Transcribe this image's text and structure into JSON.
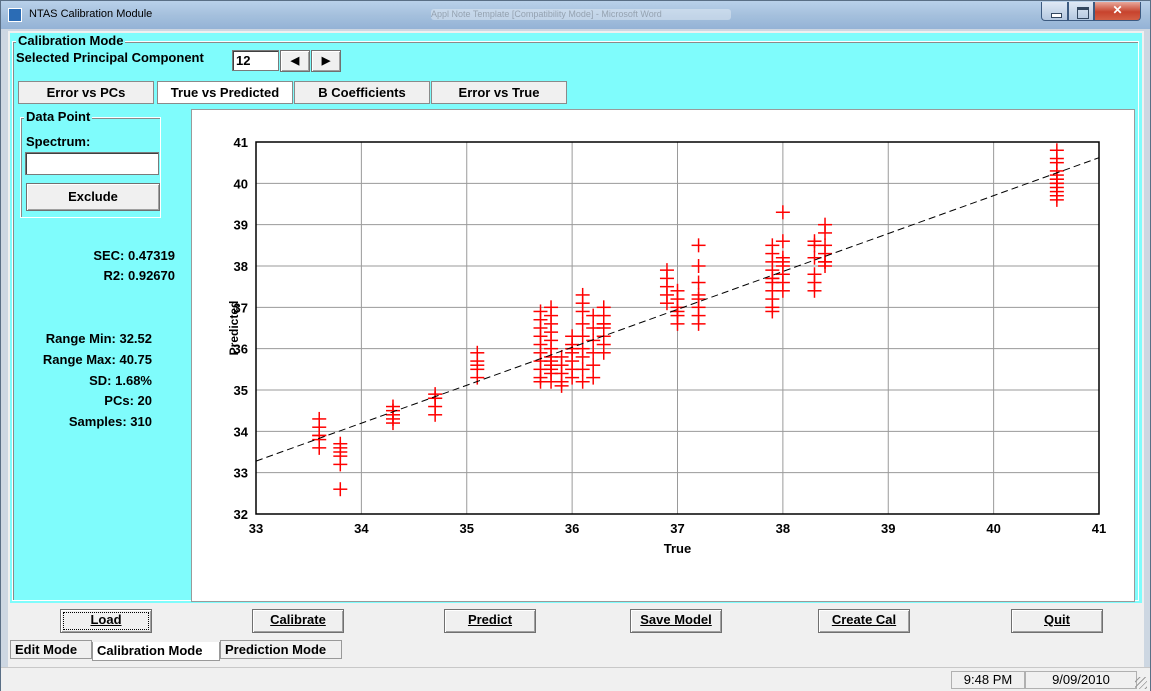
{
  "window": {
    "title": "NTAS Calibration Module",
    "background_title": "Appl Note Template [Compatibility Mode] - Microsoft Word"
  },
  "calibration": {
    "group_label": "Calibration Mode",
    "pc_label": "Selected Principal Component",
    "pc_value": "12"
  },
  "view_tabs": [
    {
      "label": "Error vs PCs",
      "active": false
    },
    {
      "label": "True vs Predicted",
      "active": true
    },
    {
      "label": "B Coefficients",
      "active": false
    },
    {
      "label": "Error vs True",
      "active": false
    }
  ],
  "data_point": {
    "group_label": "Data Point",
    "spectrum_label": "Spectrum:",
    "spectrum_value": "",
    "exclude_label": "Exclude"
  },
  "stats": {
    "sec": "SEC: 0.47319",
    "r2": "R2: 0.92670",
    "range_min": "Range Min: 32.52",
    "range_max": "Range Max: 40.75",
    "sd": "SD: 1.68%",
    "pcs": "PCs: 20",
    "samples": "Samples: 310"
  },
  "bottom_buttons": {
    "load": "Load",
    "calibrate": "Calibrate",
    "predict": "Predict",
    "save_model": "Save Model",
    "create_cal": "Create Cal",
    "quit": "Quit"
  },
  "mode_tabs": {
    "edit": "Edit Mode",
    "calibration": "Calibration Mode",
    "prediction": "Prediction Mode"
  },
  "status": {
    "time": "9:48 PM",
    "date": "9/09/2010"
  },
  "chart_data": {
    "type": "scatter",
    "title": "",
    "xlabel": "True",
    "ylabel": "Predicted",
    "xlim": [
      33,
      41
    ],
    "ylim": [
      32,
      41
    ],
    "xticks": [
      33,
      34,
      35,
      36,
      37,
      38,
      39,
      40,
      41
    ],
    "yticks": [
      32,
      33,
      34,
      35,
      36,
      37,
      38,
      39,
      40,
      41
    ],
    "grid": true,
    "marker": "plus",
    "marker_color": "#ff0000",
    "fit_line": {
      "x": [
        33,
        41
      ],
      "y": [
        33.28,
        40.62
      ],
      "style": "dashed",
      "color": "#000000"
    },
    "points": [
      [
        33.6,
        34.3
      ],
      [
        33.6,
        34.1
      ],
      [
        33.6,
        33.9
      ],
      [
        33.6,
        33.8
      ],
      [
        33.6,
        33.6
      ],
      [
        33.6,
        33.9
      ],
      [
        33.8,
        33.7
      ],
      [
        33.8,
        33.5
      ],
      [
        33.8,
        33.4
      ],
      [
        33.8,
        33.2
      ],
      [
        33.8,
        32.6
      ],
      [
        33.8,
        33.6
      ],
      [
        34.3,
        34.6
      ],
      [
        34.3,
        34.4
      ],
      [
        34.3,
        34.3
      ],
      [
        34.3,
        34.5
      ],
      [
        34.3,
        34.2
      ],
      [
        34.7,
        34.9
      ],
      [
        34.7,
        34.8
      ],
      [
        34.7,
        34.6
      ],
      [
        34.7,
        34.4
      ],
      [
        34.7,
        34.8
      ],
      [
        35.1,
        35.9
      ],
      [
        35.1,
        35.7
      ],
      [
        35.1,
        35.5
      ],
      [
        35.1,
        35.3
      ],
      [
        35.1,
        35.6
      ],
      [
        35.7,
        36.9
      ],
      [
        35.7,
        36.7
      ],
      [
        35.7,
        36.5
      ],
      [
        35.7,
        36.3
      ],
      [
        35.7,
        36.1
      ],
      [
        35.7,
        35.9
      ],
      [
        35.7,
        35.7
      ],
      [
        35.7,
        35.5
      ],
      [
        35.7,
        35.3
      ],
      [
        35.7,
        35.2
      ],
      [
        35.8,
        37.0
      ],
      [
        35.8,
        36.8
      ],
      [
        35.8,
        36.6
      ],
      [
        35.8,
        36.4
      ],
      [
        35.8,
        36.2
      ],
      [
        35.8,
        36.0
      ],
      [
        35.8,
        35.8
      ],
      [
        35.8,
        35.6
      ],
      [
        35.8,
        35.4
      ],
      [
        35.8,
        35.2
      ],
      [
        35.8,
        35.7
      ],
      [
        35.8,
        35.5
      ],
      [
        35.9,
        35.8
      ],
      [
        35.9,
        35.6
      ],
      [
        35.9,
        35.4
      ],
      [
        35.9,
        35.2
      ],
      [
        35.9,
        35.1
      ],
      [
        36.0,
        36.3
      ],
      [
        36.0,
        36.1
      ],
      [
        36.0,
        35.9
      ],
      [
        36.0,
        35.7
      ],
      [
        36.0,
        35.5
      ],
      [
        36.0,
        35.3
      ],
      [
        36.0,
        36.0
      ],
      [
        36.1,
        37.3
      ],
      [
        36.1,
        37.1
      ],
      [
        36.1,
        36.9
      ],
      [
        36.1,
        36.6
      ],
      [
        36.1,
        36.3
      ],
      [
        36.1,
        36.0
      ],
      [
        36.1,
        35.8
      ],
      [
        36.1,
        35.5
      ],
      [
        36.1,
        35.2
      ],
      [
        36.2,
        36.8
      ],
      [
        36.2,
        36.5
      ],
      [
        36.2,
        36.2
      ],
      [
        36.2,
        35.9
      ],
      [
        36.2,
        35.6
      ],
      [
        36.2,
        35.3
      ],
      [
        36.3,
        37.0
      ],
      [
        36.3,
        36.8
      ],
      [
        36.3,
        36.6
      ],
      [
        36.3,
        36.5
      ],
      [
        36.3,
        36.3
      ],
      [
        36.3,
        36.1
      ],
      [
        36.3,
        35.9
      ],
      [
        36.3,
        36.6
      ],
      [
        36.9,
        37.9
      ],
      [
        36.9,
        37.7
      ],
      [
        36.9,
        37.5
      ],
      [
        36.9,
        37.3
      ],
      [
        36.9,
        37.1
      ],
      [
        37.0,
        37.4
      ],
      [
        37.0,
        37.2
      ],
      [
        37.0,
        37.0
      ],
      [
        37.0,
        36.8
      ],
      [
        37.0,
        36.6
      ],
      [
        37.0,
        36.9
      ],
      [
        37.2,
        38.5
      ],
      [
        37.2,
        38.0
      ],
      [
        37.2,
        37.6
      ],
      [
        37.2,
        37.3
      ],
      [
        37.2,
        37.0
      ],
      [
        37.2,
        36.8
      ],
      [
        37.2,
        36.6
      ],
      [
        37.2,
        37.2
      ],
      [
        37.9,
        38.5
      ],
      [
        37.9,
        38.3
      ],
      [
        37.9,
        38.1
      ],
      [
        37.9,
        37.9
      ],
      [
        37.9,
        37.7
      ],
      [
        37.9,
        37.6
      ],
      [
        37.9,
        37.4
      ],
      [
        37.9,
        37.2
      ],
      [
        37.9,
        37.0
      ],
      [
        37.9,
        36.9
      ],
      [
        37.9,
        37.7
      ],
      [
        38.0,
        39.3
      ],
      [
        38.0,
        38.6
      ],
      [
        38.0,
        38.1
      ],
      [
        38.0,
        38.0
      ],
      [
        38.0,
        37.8
      ],
      [
        38.0,
        37.6
      ],
      [
        38.0,
        37.4
      ],
      [
        38.0,
        38.2
      ],
      [
        38.3,
        38.6
      ],
      [
        38.3,
        38.5
      ],
      [
        38.3,
        38.2
      ],
      [
        38.3,
        37.8
      ],
      [
        38.3,
        37.6
      ],
      [
        38.3,
        37.4
      ],
      [
        38.4,
        39.0
      ],
      [
        38.4,
        38.8
      ],
      [
        38.4,
        38.5
      ],
      [
        38.4,
        38.3
      ],
      [
        38.4,
        38.1
      ],
      [
        38.4,
        38.0
      ],
      [
        38.4,
        38.1
      ],
      [
        40.6,
        40.8
      ],
      [
        40.6,
        40.6
      ],
      [
        40.6,
        40.5
      ],
      [
        40.6,
        40.3
      ],
      [
        40.6,
        40.2
      ],
      [
        40.6,
        40.1
      ],
      [
        40.6,
        40.0
      ],
      [
        40.6,
        39.9
      ],
      [
        40.6,
        39.8
      ],
      [
        40.6,
        39.7
      ],
      [
        40.6,
        39.6
      ],
      [
        40.6,
        40.0
      ],
      [
        40.6,
        40.1
      ]
    ]
  }
}
